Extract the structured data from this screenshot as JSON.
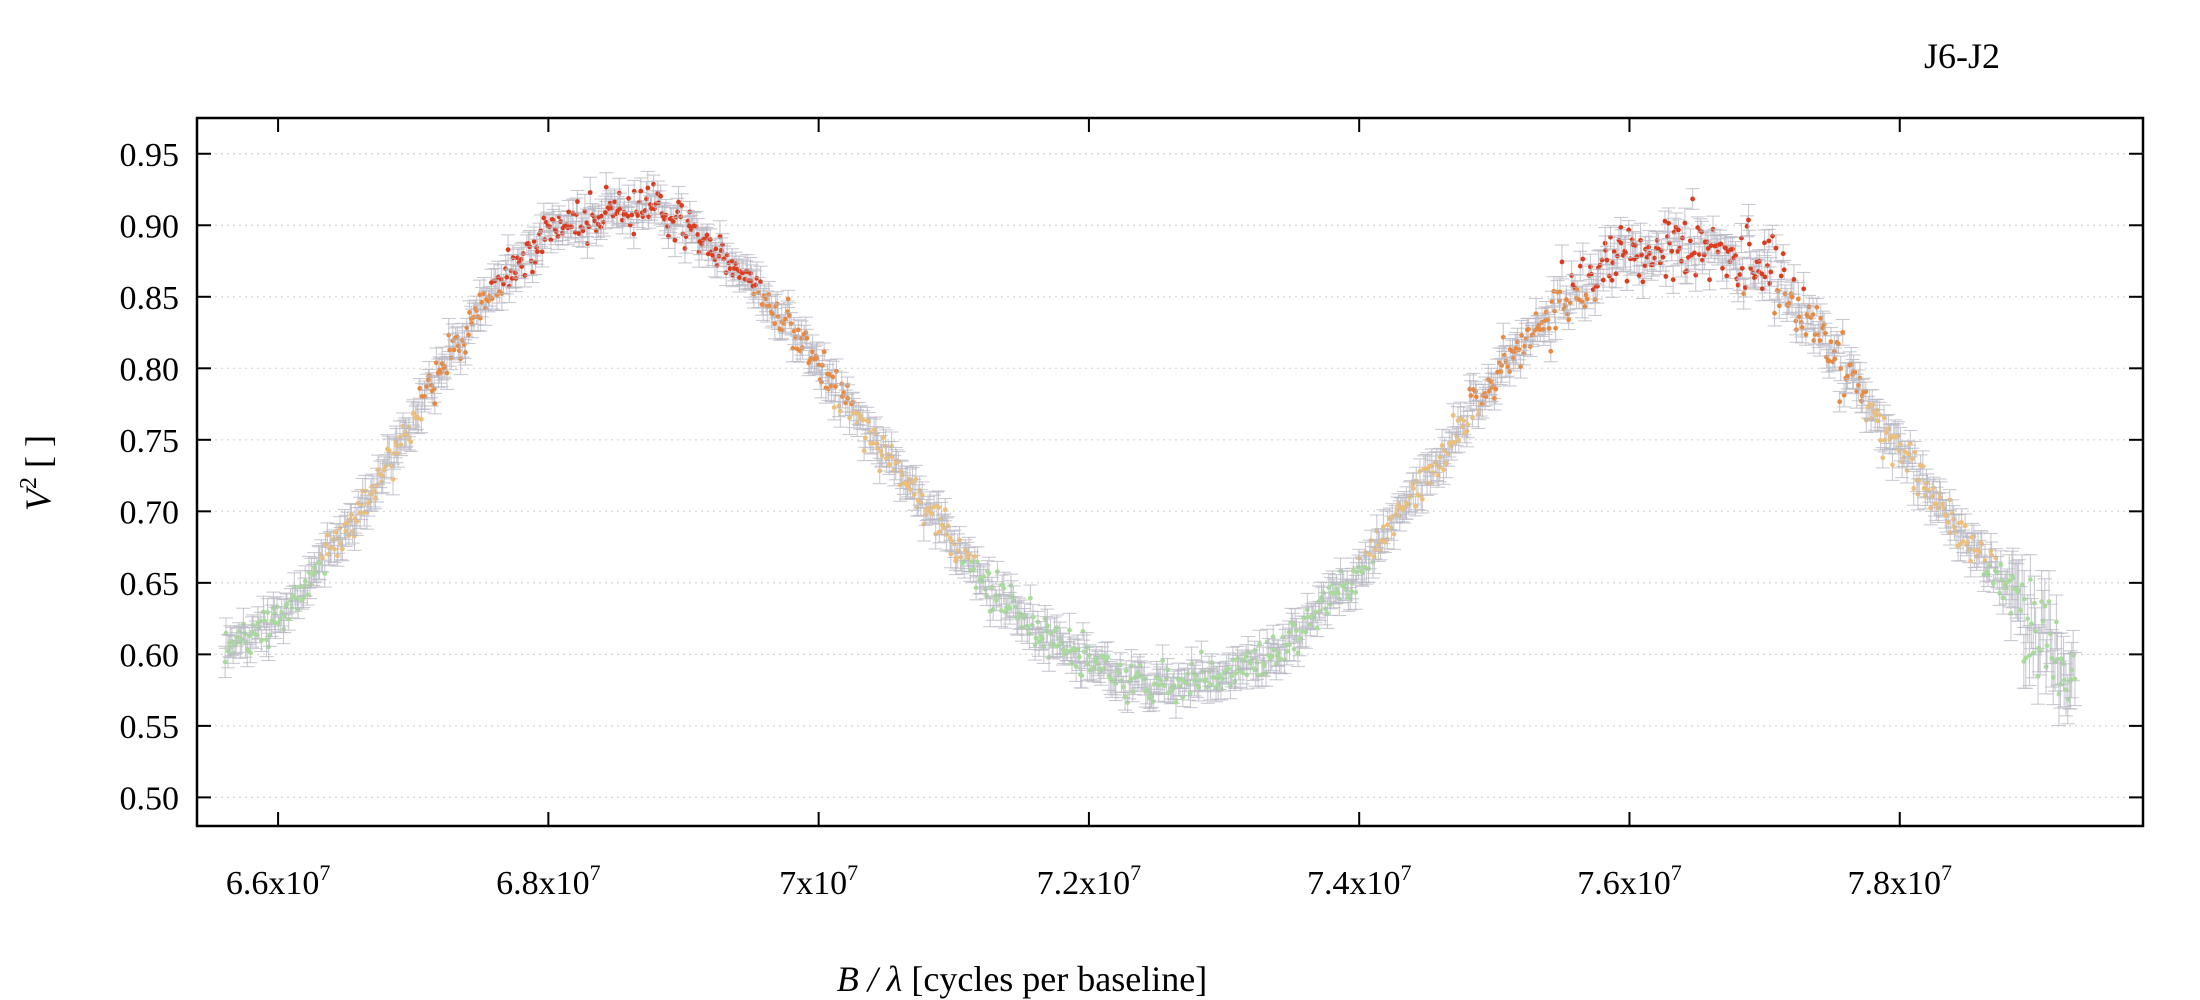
{
  "chart_data": {
    "type": "scatter",
    "title": "J6-J2",
    "xlabel_italic": "B / λ",
    "xlabel_rest": " [cycles per baseline]",
    "ylabel_italic": "V",
    "ylabel_sup": "2",
    "ylabel_rest": " [ ]",
    "xlim": [
      65400000,
      79800000
    ],
    "ylim": [
      0.48,
      0.975
    ],
    "x_ticks": [
      {
        "value": 66000000,
        "mantissa": "6.6x10",
        "exp": "7"
      },
      {
        "value": 68000000,
        "mantissa": "6.8x10",
        "exp": "7"
      },
      {
        "value": 70000000,
        "mantissa": "7x10",
        "exp": "7"
      },
      {
        "value": 72000000,
        "mantissa": "7.2x10",
        "exp": "7"
      },
      {
        "value": 74000000,
        "mantissa": "7.4x10",
        "exp": "7"
      },
      {
        "value": 76000000,
        "mantissa": "7.6x10",
        "exp": "7"
      },
      {
        "value": 78000000,
        "mantissa": "7.8x10",
        "exp": "7"
      }
    ],
    "y_ticks": [
      {
        "value": 0.5,
        "label": "0.50"
      },
      {
        "value": 0.55,
        "label": "0.55"
      },
      {
        "value": 0.6,
        "label": "0.60"
      },
      {
        "value": 0.65,
        "label": "0.65"
      },
      {
        "value": 0.7,
        "label": "0.70"
      },
      {
        "value": 0.75,
        "label": "0.75"
      },
      {
        "value": 0.8,
        "label": "0.80"
      },
      {
        "value": 0.85,
        "label": "0.85"
      },
      {
        "value": 0.9,
        "label": "0.90"
      },
      {
        "value": 0.95,
        "label": "0.95"
      }
    ],
    "grid": "horizontal dotted",
    "legend": "none",
    "colors": {
      "low": "#a8dc9a",
      "mid": "#ecc07a",
      "high": "#e8893f",
      "top": "#dc3c1e",
      "error_bar": "#b8b8c4",
      "grid": "#d4d4d4"
    },
    "trend": {
      "x": [
        65600000,
        66000000,
        66500000,
        67000000,
        67500000,
        68000000,
        68500000,
        68700000,
        69000000,
        69500000,
        70000000,
        70500000,
        71000000,
        71500000,
        72000000,
        72300000,
        72700000,
        73000000,
        73500000,
        74000000,
        74500000,
        75000000,
        75500000,
        76000000,
        76400000,
        76800000,
        77000000,
        77500000,
        78000000,
        78500000,
        79000000,
        79300000
      ],
      "y": [
        0.605,
        0.625,
        0.685,
        0.765,
        0.845,
        0.895,
        0.912,
        0.914,
        0.9,
        0.86,
        0.805,
        0.74,
        0.675,
        0.625,
        0.595,
        0.58,
        0.578,
        0.583,
        0.61,
        0.66,
        0.725,
        0.795,
        0.85,
        0.88,
        0.888,
        0.88,
        0.87,
        0.815,
        0.745,
        0.68,
        0.62,
        0.575
      ]
    },
    "sampling": {
      "count": 1300,
      "x_start": 65600000,
      "x_end": 79300000,
      "seed": 12345
    }
  }
}
